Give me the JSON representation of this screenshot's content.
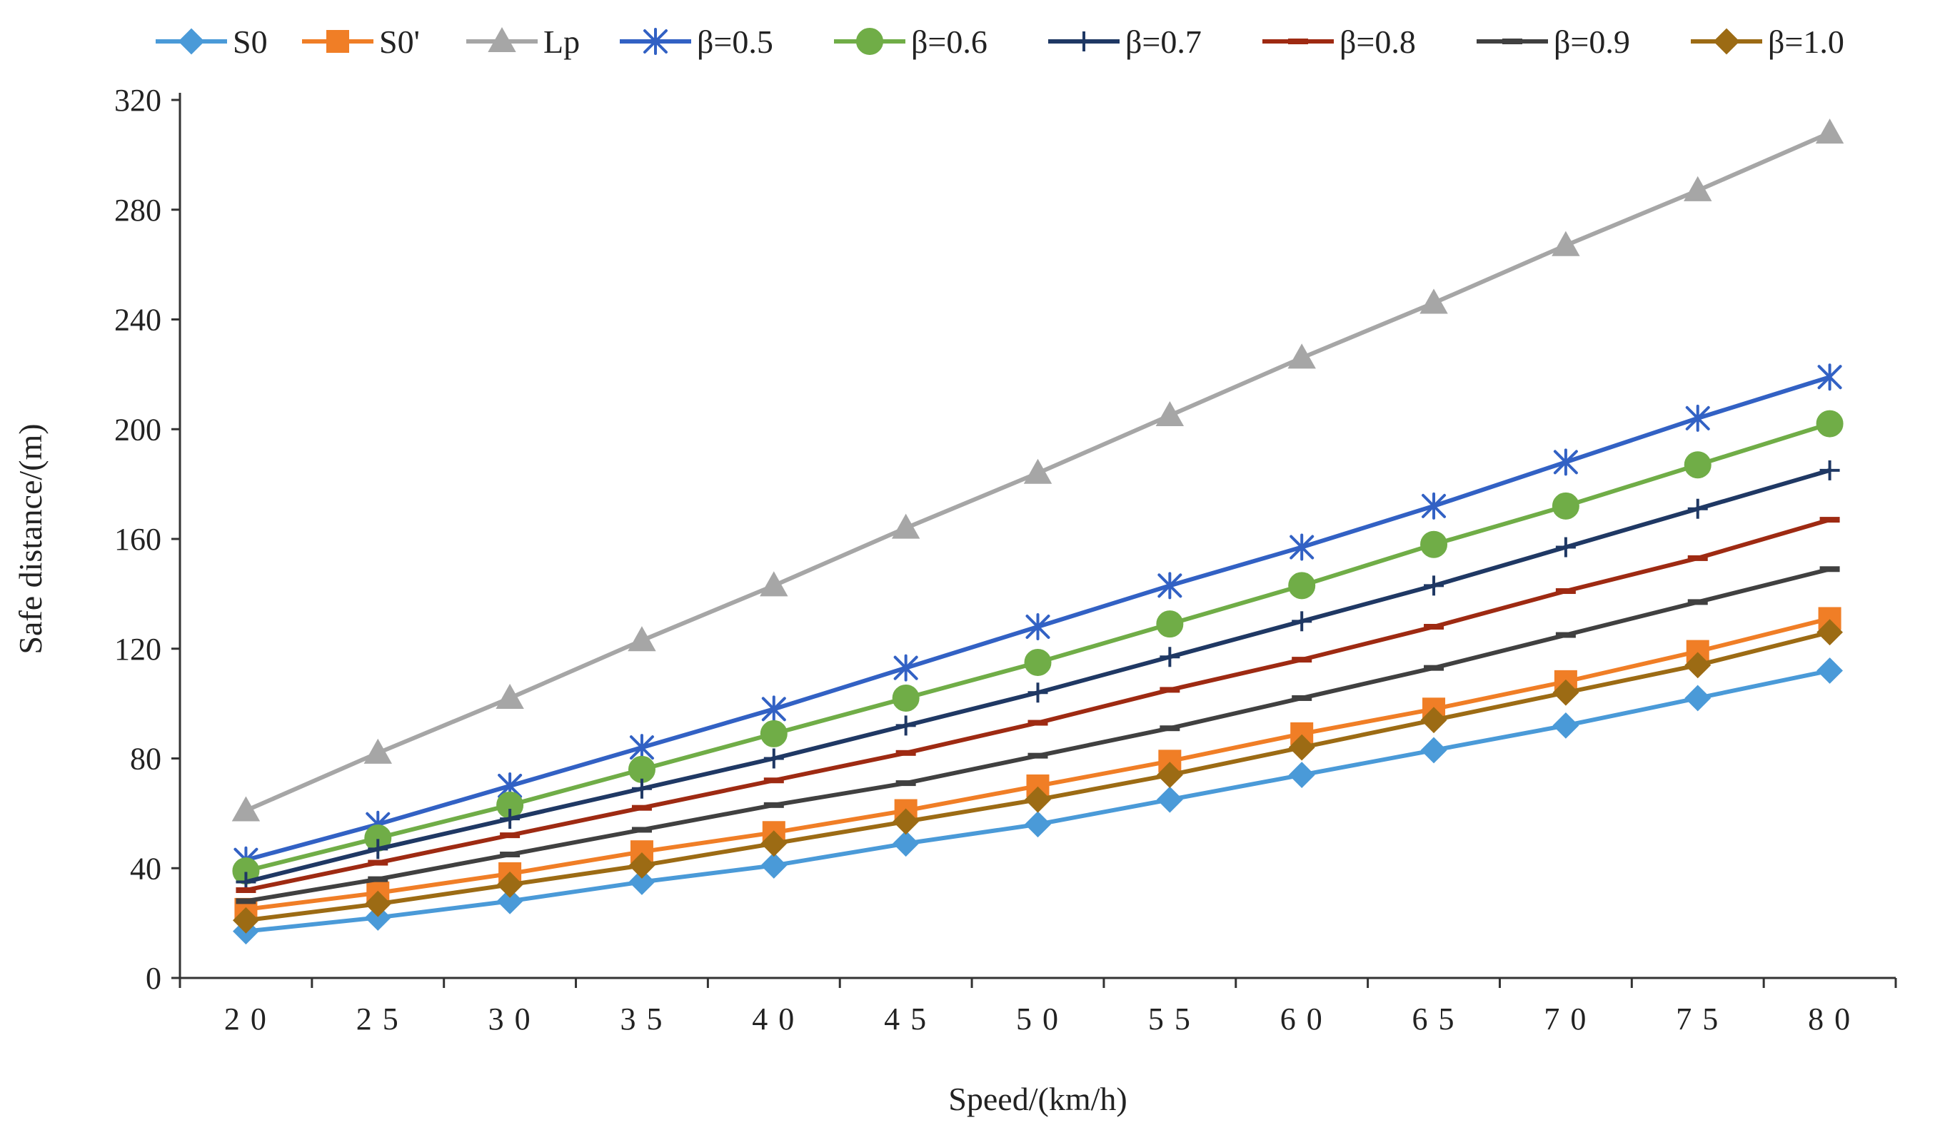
{
  "chart_data": {
    "type": "line",
    "title": "",
    "xlabel": "Speed/(km/h)",
    "ylabel": "Safe distance/(m)",
    "x": [
      20,
      25,
      30,
      35,
      40,
      45,
      50,
      55,
      60,
      65,
      70,
      75,
      80
    ],
    "x_tick_labels": [
      "2 0",
      "2 5",
      "3 0",
      "3 5",
      "4 0",
      "4 5",
      "5 0",
      "5 5",
      "6 0",
      "6 5",
      "7 0",
      "7 5",
      "8 0"
    ],
    "ylim": [
      0,
      320
    ],
    "y_ticks": [
      0,
      40,
      80,
      120,
      160,
      200,
      240,
      280,
      320
    ],
    "grid": false,
    "legend_position": "top",
    "series": [
      {
        "name": "S0",
        "color": "#4A9AD8",
        "marker": "diamond",
        "values": [
          17,
          22,
          28,
          35,
          41,
          49,
          56,
          65,
          74,
          83,
          92,
          102,
          112
        ]
      },
      {
        "name": "S0'",
        "color": "#F07E26",
        "marker": "square",
        "values": [
          25,
          31,
          38,
          46,
          53,
          61,
          70,
          79,
          89,
          98,
          108,
          119,
          131
        ]
      },
      {
        "name": "Lp",
        "color": "#A6A6A6",
        "marker": "triangle",
        "values": [
          61,
          82,
          102,
          123,
          143,
          164,
          184,
          205,
          226,
          246,
          267,
          287,
          308
        ]
      },
      {
        "name": "β=0.5",
        "color": "#3261C4",
        "marker": "asterisk",
        "values": [
          43,
          56,
          70,
          84,
          98,
          113,
          128,
          143,
          157,
          172,
          188,
          204,
          219
        ]
      },
      {
        "name": "β=0.6",
        "color": "#70AD47",
        "marker": "circle",
        "values": [
          39,
          51,
          63,
          76,
          89,
          102,
          115,
          129,
          143,
          158,
          172,
          187,
          202
        ]
      },
      {
        "name": "β=0.7",
        "color": "#1F3864",
        "marker": "plus",
        "values": [
          35,
          47,
          58,
          69,
          80,
          92,
          104,
          117,
          130,
          143,
          157,
          171,
          185
        ]
      },
      {
        "name": "β=0.8",
        "color": "#9E2A12",
        "marker": "dash",
        "values": [
          32,
          42,
          52,
          62,
          72,
          82,
          93,
          105,
          116,
          128,
          141,
          153,
          167
        ]
      },
      {
        "name": "β=0.9",
        "color": "#404040",
        "marker": "dash",
        "values": [
          28,
          36,
          45,
          54,
          63,
          71,
          81,
          91,
          102,
          113,
          125,
          137,
          149
        ]
      },
      {
        "name": "β=1.0",
        "color": "#9C6B14",
        "marker": "diamond",
        "values": [
          21,
          27,
          34,
          41,
          49,
          57,
          65,
          74,
          84,
          94,
          104,
          114,
          126
        ]
      }
    ]
  }
}
